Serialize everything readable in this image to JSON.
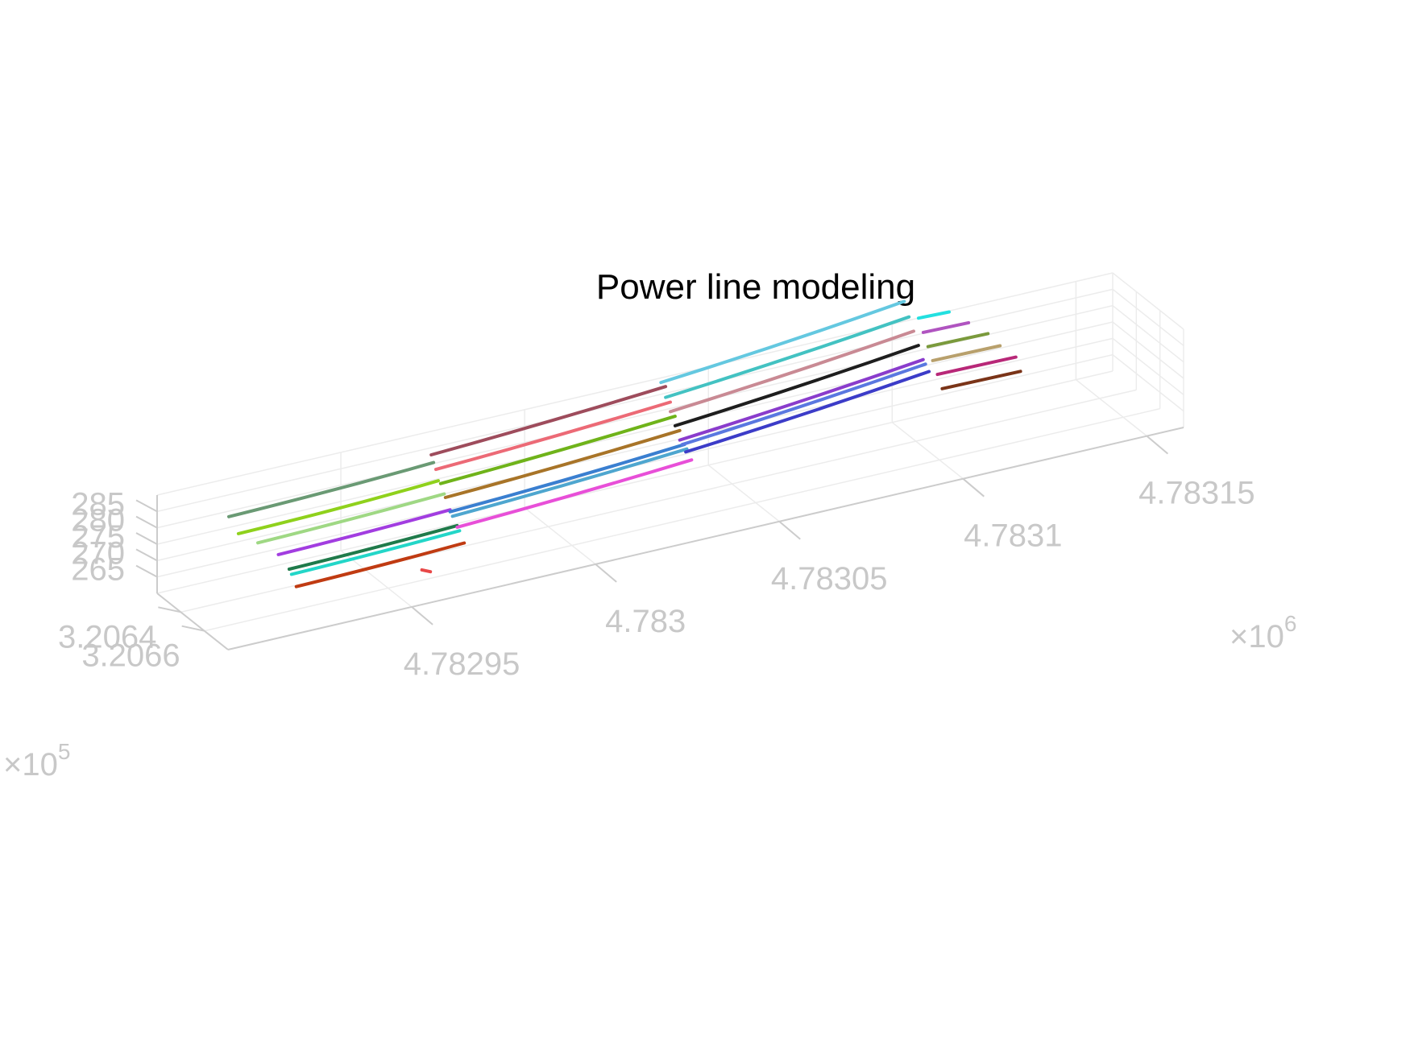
{
  "chart_data": {
    "type": "line",
    "title": "Power line modeling",
    "axes": {
      "x": {
        "ticks": [
          "4.78295",
          "4.783",
          "4.78305",
          "4.7831",
          "4.78315"
        ],
        "tick_values": [
          4782950,
          4783000,
          4783050,
          4783100,
          4783150
        ],
        "multiplier_base": "×10",
        "multiplier_exp": "6"
      },
      "y": {
        "ticks": [
          "3.2064",
          "3.2066"
        ],
        "tick_values": [
          320640,
          320660
        ],
        "multiplier_base": "×10",
        "multiplier_exp": "5"
      },
      "z": {
        "ticks": [
          "265",
          "270",
          "275",
          "280",
          "285"
        ],
        "tick_values": [
          265,
          270,
          275,
          280,
          285
        ]
      }
    },
    "grid": true,
    "colors": {
      "tick_label": "#c8c8c8",
      "axis_line": "#cccccc",
      "grid": "#ececec"
    },
    "series": [
      {
        "color": "#6a9a74",
        "points": [
          [
            4782915,
            320634,
            283.5
          ],
          [
            4782944,
            320632,
            283.2
          ],
          [
            4782972,
            320630,
            284.0
          ]
        ]
      },
      {
        "color": "#8fd11c",
        "points": [
          [
            4782916,
            320639,
            279.5
          ],
          [
            4782944,
            320637,
            279.0
          ],
          [
            4782972,
            320634,
            279.6
          ]
        ]
      },
      {
        "color": "#9fd884",
        "points": [
          [
            4782920,
            320643,
            276.8
          ],
          [
            4782946,
            320641,
            276.5
          ],
          [
            4782972,
            320639,
            277.0
          ]
        ]
      },
      {
        "color": "#a23de0",
        "points": [
          [
            4782924,
            320648,
            273.6
          ],
          [
            4782948,
            320646,
            273.2
          ],
          [
            4782972,
            320644,
            273.6
          ]
        ]
      },
      {
        "color": "#1f7a4a",
        "points": [
          [
            4782925,
            320654,
            270.6
          ],
          [
            4782949,
            320652,
            270.2
          ],
          [
            4782972,
            320650,
            270.5
          ]
        ]
      },
      {
        "color": "#23d6c8",
        "points": [
          [
            4782925,
            320656,
            269.6
          ],
          [
            4782949,
            320654,
            269.2
          ],
          [
            4782972,
            320652,
            269.5
          ]
        ]
      },
      {
        "color": "#c03b12",
        "points": [
          [
            4782925,
            320660,
            267.0
          ],
          [
            4782949,
            320658,
            266.6
          ],
          [
            4782972,
            320656,
            266.9
          ]
        ]
      },
      {
        "color": "#9e4c5c",
        "points": [
          [
            4782972,
            320628,
            285.8
          ],
          [
            4783005,
            320623,
            285.5
          ],
          [
            4783039,
            320618,
            286.3
          ]
        ]
      },
      {
        "color": "#ec6a76",
        "points": [
          [
            4782972,
            320632,
            282.5
          ],
          [
            4783005,
            320627,
            282.0
          ],
          [
            4783039,
            320622,
            282.7
          ]
        ]
      },
      {
        "color": "#6fb31a",
        "points": [
          [
            4782972,
            320636,
            279.3
          ],
          [
            4783005,
            320631,
            278.8
          ],
          [
            4783039,
            320626,
            279.5
          ]
        ]
      },
      {
        "color": "#a87428",
        "points": [
          [
            4782972,
            320640,
            276.2
          ],
          [
            4783005,
            320635,
            275.6
          ],
          [
            4783039,
            320630,
            276.3
          ]
        ]
      },
      {
        "color": "#3a7fd0",
        "points": [
          [
            4782972,
            320644,
            273.0
          ],
          [
            4783005,
            320639,
            272.4
          ],
          [
            4783039,
            320634,
            273.2
          ]
        ]
      },
      {
        "color": "#4ea6cf",
        "points": [
          [
            4782972,
            320646,
            272.2
          ],
          [
            4783005,
            320641,
            271.7
          ],
          [
            4783039,
            320636,
            272.4
          ]
        ]
      },
      {
        "color": "#e84fd8",
        "points": [
          [
            4782972,
            320650,
            270.0
          ],
          [
            4783005,
            320645,
            269.5
          ],
          [
            4783039,
            320640,
            270.2
          ]
        ]
      },
      {
        "color": "#64c8e0",
        "points": [
          [
            4783039,
            320614,
            286.4
          ],
          [
            4783075,
            320605,
            286.0
          ],
          [
            4783111,
            320596,
            287.2
          ]
        ]
      },
      {
        "color": "#43c2c2",
        "points": [
          [
            4783039,
            320618,
            283.0
          ],
          [
            4783075,
            320609,
            282.6
          ],
          [
            4783111,
            320600,
            283.6
          ]
        ]
      },
      {
        "color": "#c98a94",
        "points": [
          [
            4783039,
            320622,
            279.8
          ],
          [
            4783075,
            320613,
            279.4
          ],
          [
            4783111,
            320604,
            280.4
          ]
        ]
      },
      {
        "color": "#1e1e1e",
        "points": [
          [
            4783039,
            320626,
            276.6
          ],
          [
            4783075,
            320617,
            276.2
          ],
          [
            4783111,
            320608,
            277.2
          ]
        ]
      },
      {
        "color": "#8a3ccc",
        "points": [
          [
            4783039,
            320630,
            273.4
          ],
          [
            4783075,
            320621,
            273.0
          ],
          [
            4783111,
            320612,
            274.0
          ]
        ]
      },
      {
        "color": "#5a78e0",
        "points": [
          [
            4783039,
            320632,
            272.6
          ],
          [
            4783075,
            320623,
            272.2
          ],
          [
            4783111,
            320614,
            273.2
          ]
        ]
      },
      {
        "color": "#3c3cc8",
        "points": [
          [
            4783039,
            320635,
            271.2
          ],
          [
            4783075,
            320626,
            270.8
          ],
          [
            4783111,
            320617,
            271.8
          ]
        ]
      },
      {
        "color": "#23e0e0",
        "points": [
          [
            4783112,
            320605,
            284.4
          ],
          [
            4783120,
            320606,
            284.5
          ]
        ]
      },
      {
        "color": "#b054c0",
        "points": [
          [
            4783112,
            320609,
            281.2
          ],
          [
            4783124,
            320610,
            281.3
          ]
        ]
      },
      {
        "color": "#7a9a3c",
        "points": [
          [
            4783112,
            320613,
            278.0
          ],
          [
            4783128,
            320614,
            278.1
          ]
        ]
      },
      {
        "color": "#b8a06c",
        "points": [
          [
            4783112,
            320617,
            274.9
          ],
          [
            4783130,
            320618,
            275.0
          ]
        ]
      },
      {
        "color": "#b82878",
        "points": [
          [
            4783112,
            320621,
            271.8
          ],
          [
            4783133,
            320622,
            271.9
          ]
        ]
      },
      {
        "color": "#7a3418",
        "points": [
          [
            4783112,
            320625,
            268.6
          ],
          [
            4783133,
            320626,
            268.7
          ]
        ]
      },
      {
        "color": "#e84848",
        "points": [
          [
            4782955,
            320673,
            268.0
          ],
          [
            4782957,
            320674,
            267.2
          ]
        ]
      }
    ]
  }
}
